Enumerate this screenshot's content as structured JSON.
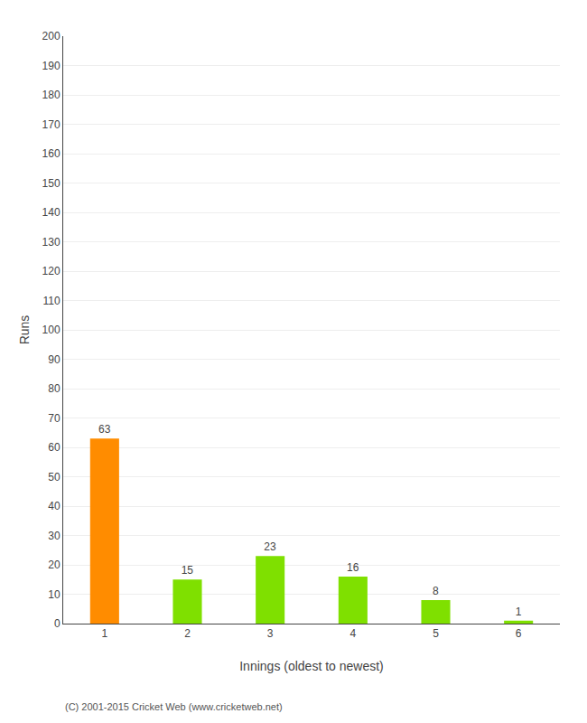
{
  "chart_data": {
    "type": "bar",
    "categories": [
      "1",
      "2",
      "3",
      "4",
      "5",
      "6"
    ],
    "values": [
      63,
      15,
      23,
      16,
      8,
      1
    ],
    "colors": [
      "#FF8C00",
      "#7FE000",
      "#7FE000",
      "#7FE000",
      "#7FE000",
      "#7FE000"
    ],
    "xlabel": "Innings (oldest to newest)",
    "ylabel": "Runs",
    "ylim": [
      0,
      200
    ],
    "yticks": [
      0,
      10,
      20,
      30,
      40,
      50,
      60,
      70,
      80,
      90,
      100,
      110,
      120,
      130,
      140,
      150,
      160,
      170,
      180,
      190,
      200
    ],
    "grid": true,
    "data_labels": true,
    "annotations": [
      "(C) 2001-2015 Cricket Web (www.cricketweb.net)"
    ]
  }
}
